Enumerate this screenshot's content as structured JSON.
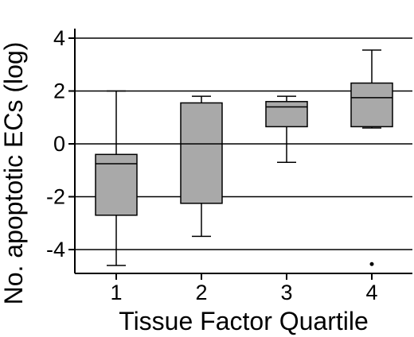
{
  "chart_data": {
    "type": "box",
    "title": "",
    "xlabel": "Tissue Factor Quartile",
    "ylabel": "No. apoptotic ECs (log)",
    "ylim": [
      -5,
      4.5
    ],
    "yticks": [
      4,
      2,
      0,
      -2,
      -4
    ],
    "ytick_labels": [
      "4",
      "2",
      "0",
      "-2",
      "-4"
    ],
    "grid": "horizontal",
    "categories": [
      "1",
      "2",
      "3",
      "4"
    ],
    "boxes": [
      {
        "category": "1",
        "whisker_low": -4.6,
        "q1": -2.7,
        "median": -0.75,
        "q3": -0.4,
        "whisker_high": 2.0,
        "outliers": []
      },
      {
        "category": "2",
        "whisker_low": -3.5,
        "q1": -2.25,
        "median": 0.0,
        "q3": 1.55,
        "whisker_high": 1.8,
        "outliers": []
      },
      {
        "category": "3",
        "whisker_low": -0.7,
        "q1": 0.65,
        "median": 1.4,
        "q3": 1.6,
        "whisker_high": 1.8,
        "outliers": []
      },
      {
        "category": "4",
        "whisker_low": 0.6,
        "q1": 0.65,
        "median": 1.75,
        "q3": 2.3,
        "whisker_high": 3.55,
        "outliers": [
          -4.55
        ]
      }
    ],
    "colors": {
      "box_fill": "#a9a9a9",
      "line": "#000000",
      "grid": "#000000"
    }
  }
}
